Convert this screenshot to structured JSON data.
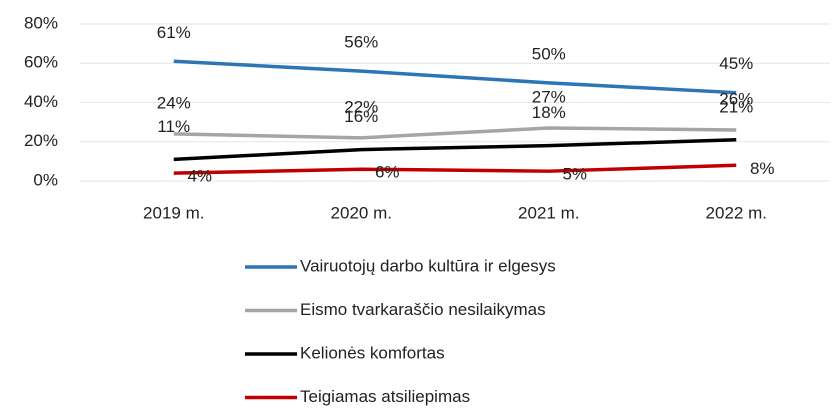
{
  "chart_data": {
    "type": "line",
    "categories": [
      "2019 m.",
      "2020 m.",
      "2021 m.",
      "2022 m."
    ],
    "series": [
      {
        "name": "Vairuotojų darbo kultūra ir elgesys",
        "color": "#2e75b6",
        "values": [
          61,
          56,
          50,
          45
        ],
        "value_labels": [
          "61%",
          "56%",
          "50%",
          "45%"
        ]
      },
      {
        "name": "Eismo tvarkaraščio nesilaikymas",
        "color": "#a5a5a5",
        "values": [
          24,
          22,
          27,
          26
        ],
        "value_labels": [
          "24%",
          "22%",
          "27%",
          "26%"
        ]
      },
      {
        "name": "Kelionės komfortas",
        "color": "#000000",
        "values": [
          11,
          16,
          18,
          21
        ],
        "value_labels": [
          "11%",
          "16%",
          "18%",
          "21%"
        ]
      },
      {
        "name": "Teigiamas atsiliepimas",
        "color": "#c00000",
        "values": [
          4,
          6,
          5,
          8
        ],
        "value_labels": [
          "4%",
          "6%",
          "5%",
          "8%"
        ]
      }
    ],
    "ylim": [
      0,
      80
    ],
    "yticks": [
      {
        "value": 0,
        "label": "0%"
      },
      {
        "value": 20,
        "label": "20%"
      },
      {
        "value": 40,
        "label": "40%"
      },
      {
        "value": 60,
        "label": "60%"
      },
      {
        "value": 80,
        "label": "80%"
      }
    ],
    "grid": true,
    "legend": "bottom"
  }
}
